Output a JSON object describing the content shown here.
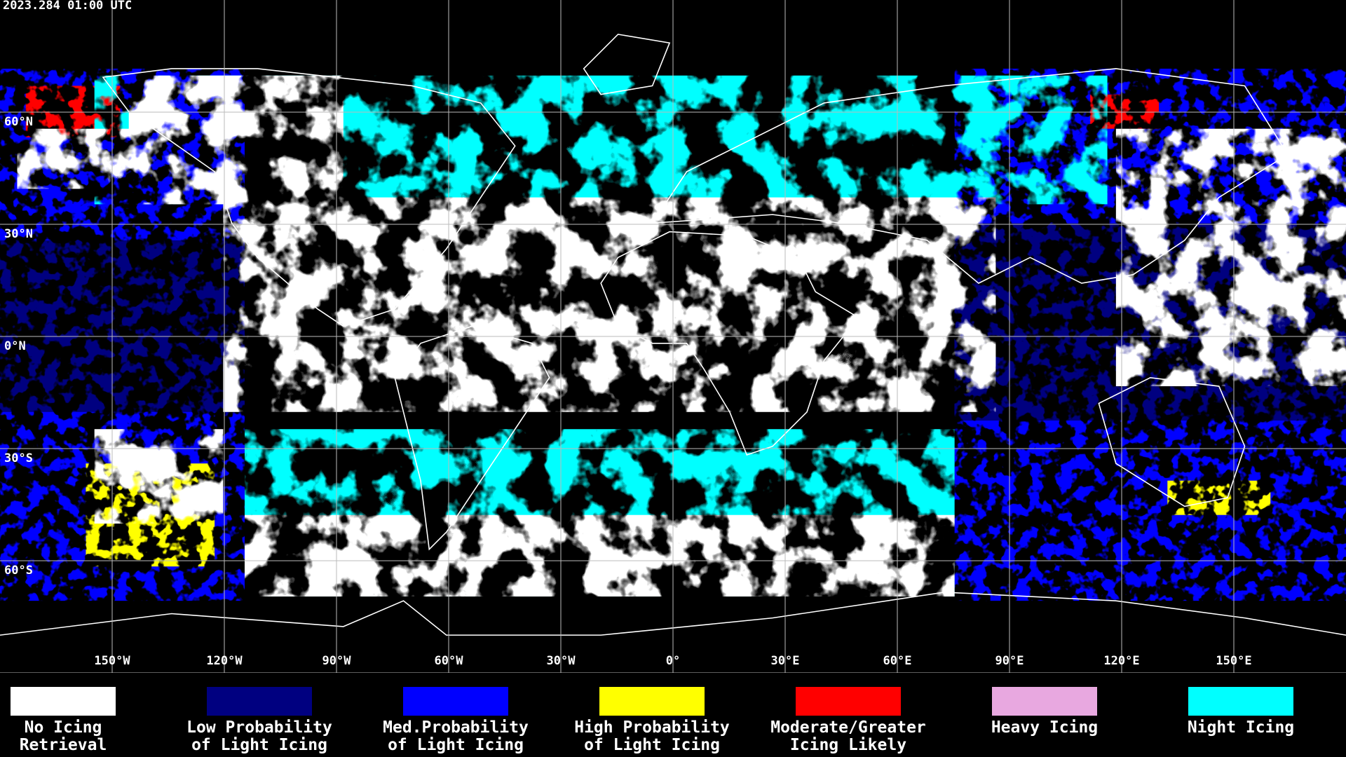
{
  "header": {
    "timestamp": "2023.284 01:00 UTC"
  },
  "map": {
    "lon_lines": [
      {
        "value": -150,
        "label": "150°W"
      },
      {
        "value": -120,
        "label": "120°W"
      },
      {
        "value": -90,
        "label": "90°W"
      },
      {
        "value": -60,
        "label": "60°W"
      },
      {
        "value": -30,
        "label": "30°W"
      },
      {
        "value": 0,
        "label": "0°"
      },
      {
        "value": 30,
        "label": "30°E"
      },
      {
        "value": 60,
        "label": "60°E"
      },
      {
        "value": 90,
        "label": "90°E"
      },
      {
        "value": 120,
        "label": "120°E"
      },
      {
        "value": 150,
        "label": "150°E"
      }
    ],
    "lat_lines": [
      {
        "value": 60,
        "label": "60°N"
      },
      {
        "value": 30,
        "label": "30°N"
      },
      {
        "value": 0,
        "label": "0°N"
      },
      {
        "value": -30,
        "label": "30°S"
      },
      {
        "value": -60,
        "label": "60°S"
      }
    ]
  },
  "legend": [
    {
      "lines": [
        "No Icing",
        "Retrieval"
      ],
      "color": "#ffffff"
    },
    {
      "lines": [
        "Low Probability",
        "of Light Icing"
      ],
      "color": "#000080"
    },
    {
      "lines": [
        "Med.Probability",
        "of Light Icing"
      ],
      "color": "#0000ff"
    },
    {
      "lines": [
        "High Probability",
        "of Light Icing"
      ],
      "color": "#ffff00"
    },
    {
      "lines": [
        "Moderate/Greater",
        "Icing Likely"
      ],
      "color": "#ff0000"
    },
    {
      "lines": [
        "Heavy Icing"
      ],
      "color": "#e8a8e0"
    },
    {
      "lines": [
        "Night Icing"
      ],
      "color": "#00ffff"
    }
  ]
}
